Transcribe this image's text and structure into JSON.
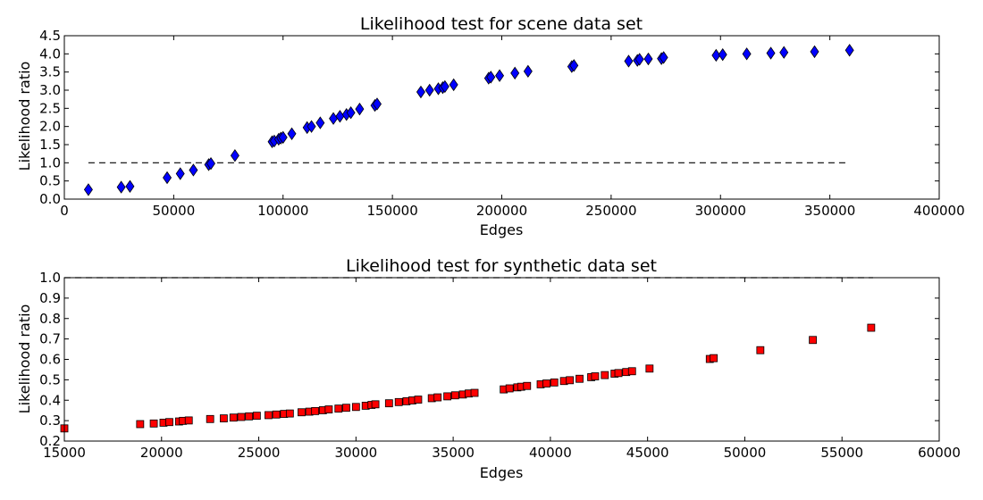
{
  "chart_data": [
    {
      "type": "scatter",
      "title": "Likelihood test for scene data set",
      "xlabel": "Edges",
      "ylabel": "Likelihood ratio",
      "xlim": [
        0,
        400000
      ],
      "ylim": [
        0.0,
        4.5
      ],
      "xticks": [
        "0",
        "50000",
        "100000",
        "150000",
        "200000",
        "250000",
        "300000",
        "350000",
        "400000"
      ],
      "yticks": [
        "0.0",
        "0.5",
        "1.0",
        "1.5",
        "2.0",
        "2.5",
        "3.0",
        "3.5",
        "4.0",
        "4.5"
      ],
      "marker": "diamond",
      "color": "#0000ff",
      "reference_line": {
        "y": 1.0,
        "x_start": 11000,
        "x_end": 359000,
        "style": "dashed",
        "color": "#000000"
      },
      "points": [
        [
          11000,
          0.26
        ],
        [
          26000,
          0.33
        ],
        [
          30000,
          0.35
        ],
        [
          47000,
          0.59
        ],
        [
          53000,
          0.7
        ],
        [
          59000,
          0.8
        ],
        [
          66000,
          0.95
        ],
        [
          67000,
          0.98
        ],
        [
          78000,
          1.2
        ],
        [
          95000,
          1.58
        ],
        [
          96000,
          1.6
        ],
        [
          98000,
          1.65
        ],
        [
          99000,
          1.68
        ],
        [
          100000,
          1.7
        ],
        [
          104000,
          1.8
        ],
        [
          111000,
          1.97
        ],
        [
          113000,
          2.0
        ],
        [
          117000,
          2.1
        ],
        [
          123000,
          2.22
        ],
        [
          126000,
          2.28
        ],
        [
          129000,
          2.33
        ],
        [
          131000,
          2.38
        ],
        [
          135000,
          2.48
        ],
        [
          142000,
          2.58
        ],
        [
          143000,
          2.62
        ],
        [
          163000,
          2.95
        ],
        [
          167000,
          3.0
        ],
        [
          171000,
          3.04
        ],
        [
          173000,
          3.07
        ],
        [
          174000,
          3.1
        ],
        [
          178000,
          3.15
        ],
        [
          194000,
          3.33
        ],
        [
          195000,
          3.36
        ],
        [
          199000,
          3.4
        ],
        [
          206000,
          3.47
        ],
        [
          212000,
          3.52
        ],
        [
          232000,
          3.65
        ],
        [
          233000,
          3.68
        ],
        [
          258000,
          3.8
        ],
        [
          262000,
          3.82
        ],
        [
          263000,
          3.85
        ],
        [
          267000,
          3.86
        ],
        [
          273000,
          3.87
        ],
        [
          274000,
          3.9
        ],
        [
          298000,
          3.96
        ],
        [
          301000,
          3.98
        ],
        [
          312000,
          4.0
        ],
        [
          323000,
          4.02
        ],
        [
          329000,
          4.04
        ],
        [
          343000,
          4.06
        ],
        [
          359000,
          4.1
        ]
      ]
    },
    {
      "type": "scatter",
      "title": "Likelihood test for synthetic data set",
      "xlabel": "Edges",
      "ylabel": "Likelihood ratio",
      "xlim": [
        15000,
        60000
      ],
      "ylim": [
        0.2,
        1.0
      ],
      "xticks": [
        "15000",
        "20000",
        "25000",
        "30000",
        "35000",
        "40000",
        "45000",
        "50000",
        "55000",
        "60000"
      ],
      "yticks": [
        "0.2",
        "0.3",
        "0.4",
        "0.5",
        "0.6",
        "0.7",
        "0.8",
        "0.9",
        "1.0"
      ],
      "marker": "square",
      "color": "#ff0000",
      "reference_line": {
        "y": 1.0,
        "x_start": 15000,
        "x_end": 56600,
        "style": "dashed",
        "color": "#000000"
      },
      "points": [
        [
          15000,
          0.262
        ],
        [
          18900,
          0.283
        ],
        [
          19600,
          0.286
        ],
        [
          20100,
          0.29
        ],
        [
          20400,
          0.293
        ],
        [
          20900,
          0.296
        ],
        [
          21100,
          0.299
        ],
        [
          21400,
          0.301
        ],
        [
          22500,
          0.308
        ],
        [
          23200,
          0.311
        ],
        [
          23700,
          0.315
        ],
        [
          24100,
          0.318
        ],
        [
          24500,
          0.321
        ],
        [
          24900,
          0.324
        ],
        [
          25500,
          0.327
        ],
        [
          25900,
          0.33
        ],
        [
          26300,
          0.333
        ],
        [
          26600,
          0.335
        ],
        [
          27200,
          0.341
        ],
        [
          27600,
          0.344
        ],
        [
          27900,
          0.347
        ],
        [
          28300,
          0.351
        ],
        [
          28600,
          0.355
        ],
        [
          29100,
          0.359
        ],
        [
          29500,
          0.363
        ],
        [
          30000,
          0.367
        ],
        [
          30500,
          0.373
        ],
        [
          30800,
          0.377
        ],
        [
          31000,
          0.38
        ],
        [
          31700,
          0.385
        ],
        [
          32200,
          0.391
        ],
        [
          32600,
          0.395
        ],
        [
          32900,
          0.399
        ],
        [
          33200,
          0.403
        ],
        [
          33900,
          0.41
        ],
        [
          34200,
          0.414
        ],
        [
          34700,
          0.419
        ],
        [
          35100,
          0.424
        ],
        [
          35500,
          0.428
        ],
        [
          35800,
          0.433
        ],
        [
          36100,
          0.436
        ],
        [
          37600,
          0.453
        ],
        [
          37900,
          0.458
        ],
        [
          38300,
          0.463
        ],
        [
          38500,
          0.466
        ],
        [
          38800,
          0.47
        ],
        [
          39500,
          0.478
        ],
        [
          39800,
          0.482
        ],
        [
          40200,
          0.487
        ],
        [
          40700,
          0.494
        ],
        [
          41000,
          0.498
        ],
        [
          41500,
          0.505
        ],
        [
          42100,
          0.513
        ],
        [
          42300,
          0.517
        ],
        [
          42800,
          0.523
        ],
        [
          43300,
          0.53
        ],
        [
          43500,
          0.533
        ],
        [
          43900,
          0.538
        ],
        [
          44200,
          0.542
        ],
        [
          45100,
          0.555
        ],
        [
          48200,
          0.602
        ],
        [
          48400,
          0.606
        ],
        [
          50800,
          0.645
        ],
        [
          53500,
          0.695
        ],
        [
          56500,
          0.755
        ]
      ]
    }
  ]
}
